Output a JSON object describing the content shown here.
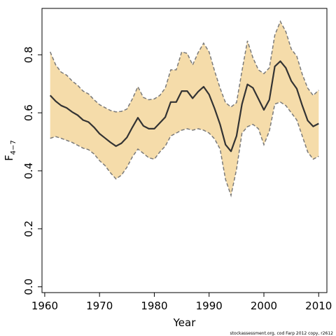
{
  "chart_data": {
    "type": "area",
    "title": "",
    "xlabel": "Year",
    "ylabel_main": "F",
    "ylabel_sub": "4−7",
    "xlim": [
      1959.5,
      2011.5
    ],
    "ylim": [
      -0.02,
      0.96
    ],
    "x_ticks": [
      1960,
      1970,
      1980,
      1990,
      2000,
      2010
    ],
    "x_tick_labels": [
      "1960",
      "1970",
      "1980",
      "1990",
      "2000",
      "2010"
    ],
    "y_ticks": [
      0.0,
      0.2,
      0.4,
      0.6,
      0.8
    ],
    "y_tick_labels": [
      "0.0",
      "0.2",
      "0.4",
      "0.6",
      "0.8"
    ],
    "grid": false,
    "legend": "none",
    "footnote": "stockassessment.org, cod Farp 2012 copy, r2612",
    "colors": {
      "band": "#f5dcaa",
      "bounds": "#7a7a7a",
      "estimate": "#333333"
    },
    "x": [
      1961,
      1962,
      1963,
      1964,
      1965,
      1966,
      1967,
      1968,
      1969,
      1970,
      1971,
      1972,
      1973,
      1974,
      1975,
      1976,
      1977,
      1978,
      1979,
      1980,
      1981,
      1982,
      1983,
      1984,
      1985,
      1986,
      1987,
      1988,
      1989,
      1990,
      1991,
      1992,
      1993,
      1994,
      1995,
      1996,
      1997,
      1998,
      1999,
      2000,
      2001,
      2002,
      2003,
      2004,
      2005,
      2006,
      2007,
      2008,
      2009,
      2010
    ],
    "series": [
      {
        "name": "estimate",
        "values": [
          0.66,
          0.64,
          0.625,
          0.617,
          0.603,
          0.592,
          0.575,
          0.568,
          0.55,
          0.528,
          0.513,
          0.498,
          0.485,
          0.495,
          0.515,
          0.55,
          0.583,
          0.555,
          0.545,
          0.545,
          0.565,
          0.585,
          0.637,
          0.637,
          0.675,
          0.675,
          0.65,
          0.673,
          0.69,
          0.663,
          0.615,
          0.56,
          0.49,
          0.467,
          0.52,
          0.63,
          0.698,
          0.686,
          0.648,
          0.61,
          0.645,
          0.76,
          0.778,
          0.755,
          0.71,
          0.683,
          0.625,
          0.573,
          0.553,
          0.563
        ]
      },
      {
        "name": "upper",
        "values": [
          0.81,
          0.765,
          0.74,
          0.73,
          0.71,
          0.695,
          0.675,
          0.665,
          0.645,
          0.628,
          0.618,
          0.608,
          0.603,
          0.605,
          0.613,
          0.648,
          0.69,
          0.653,
          0.645,
          0.648,
          0.66,
          0.685,
          0.748,
          0.748,
          0.81,
          0.805,
          0.765,
          0.808,
          0.84,
          0.81,
          0.745,
          0.685,
          0.635,
          0.62,
          0.635,
          0.745,
          0.848,
          0.79,
          0.748,
          0.735,
          0.755,
          0.868,
          0.915,
          0.88,
          0.82,
          0.795,
          0.733,
          0.685,
          0.66,
          0.678
        ]
      },
      {
        "name": "lower",
        "values": [
          0.512,
          0.518,
          0.512,
          0.505,
          0.498,
          0.488,
          0.478,
          0.473,
          0.458,
          0.435,
          0.418,
          0.393,
          0.372,
          0.385,
          0.412,
          0.448,
          0.475,
          0.46,
          0.445,
          0.44,
          0.465,
          0.485,
          0.52,
          0.53,
          0.54,
          0.545,
          0.54,
          0.545,
          0.54,
          0.53,
          0.51,
          0.475,
          0.37,
          0.315,
          0.405,
          0.53,
          0.552,
          0.56,
          0.545,
          0.49,
          0.537,
          0.63,
          0.637,
          0.625,
          0.6,
          0.575,
          0.52,
          0.465,
          0.44,
          0.45
        ]
      }
    ]
  }
}
